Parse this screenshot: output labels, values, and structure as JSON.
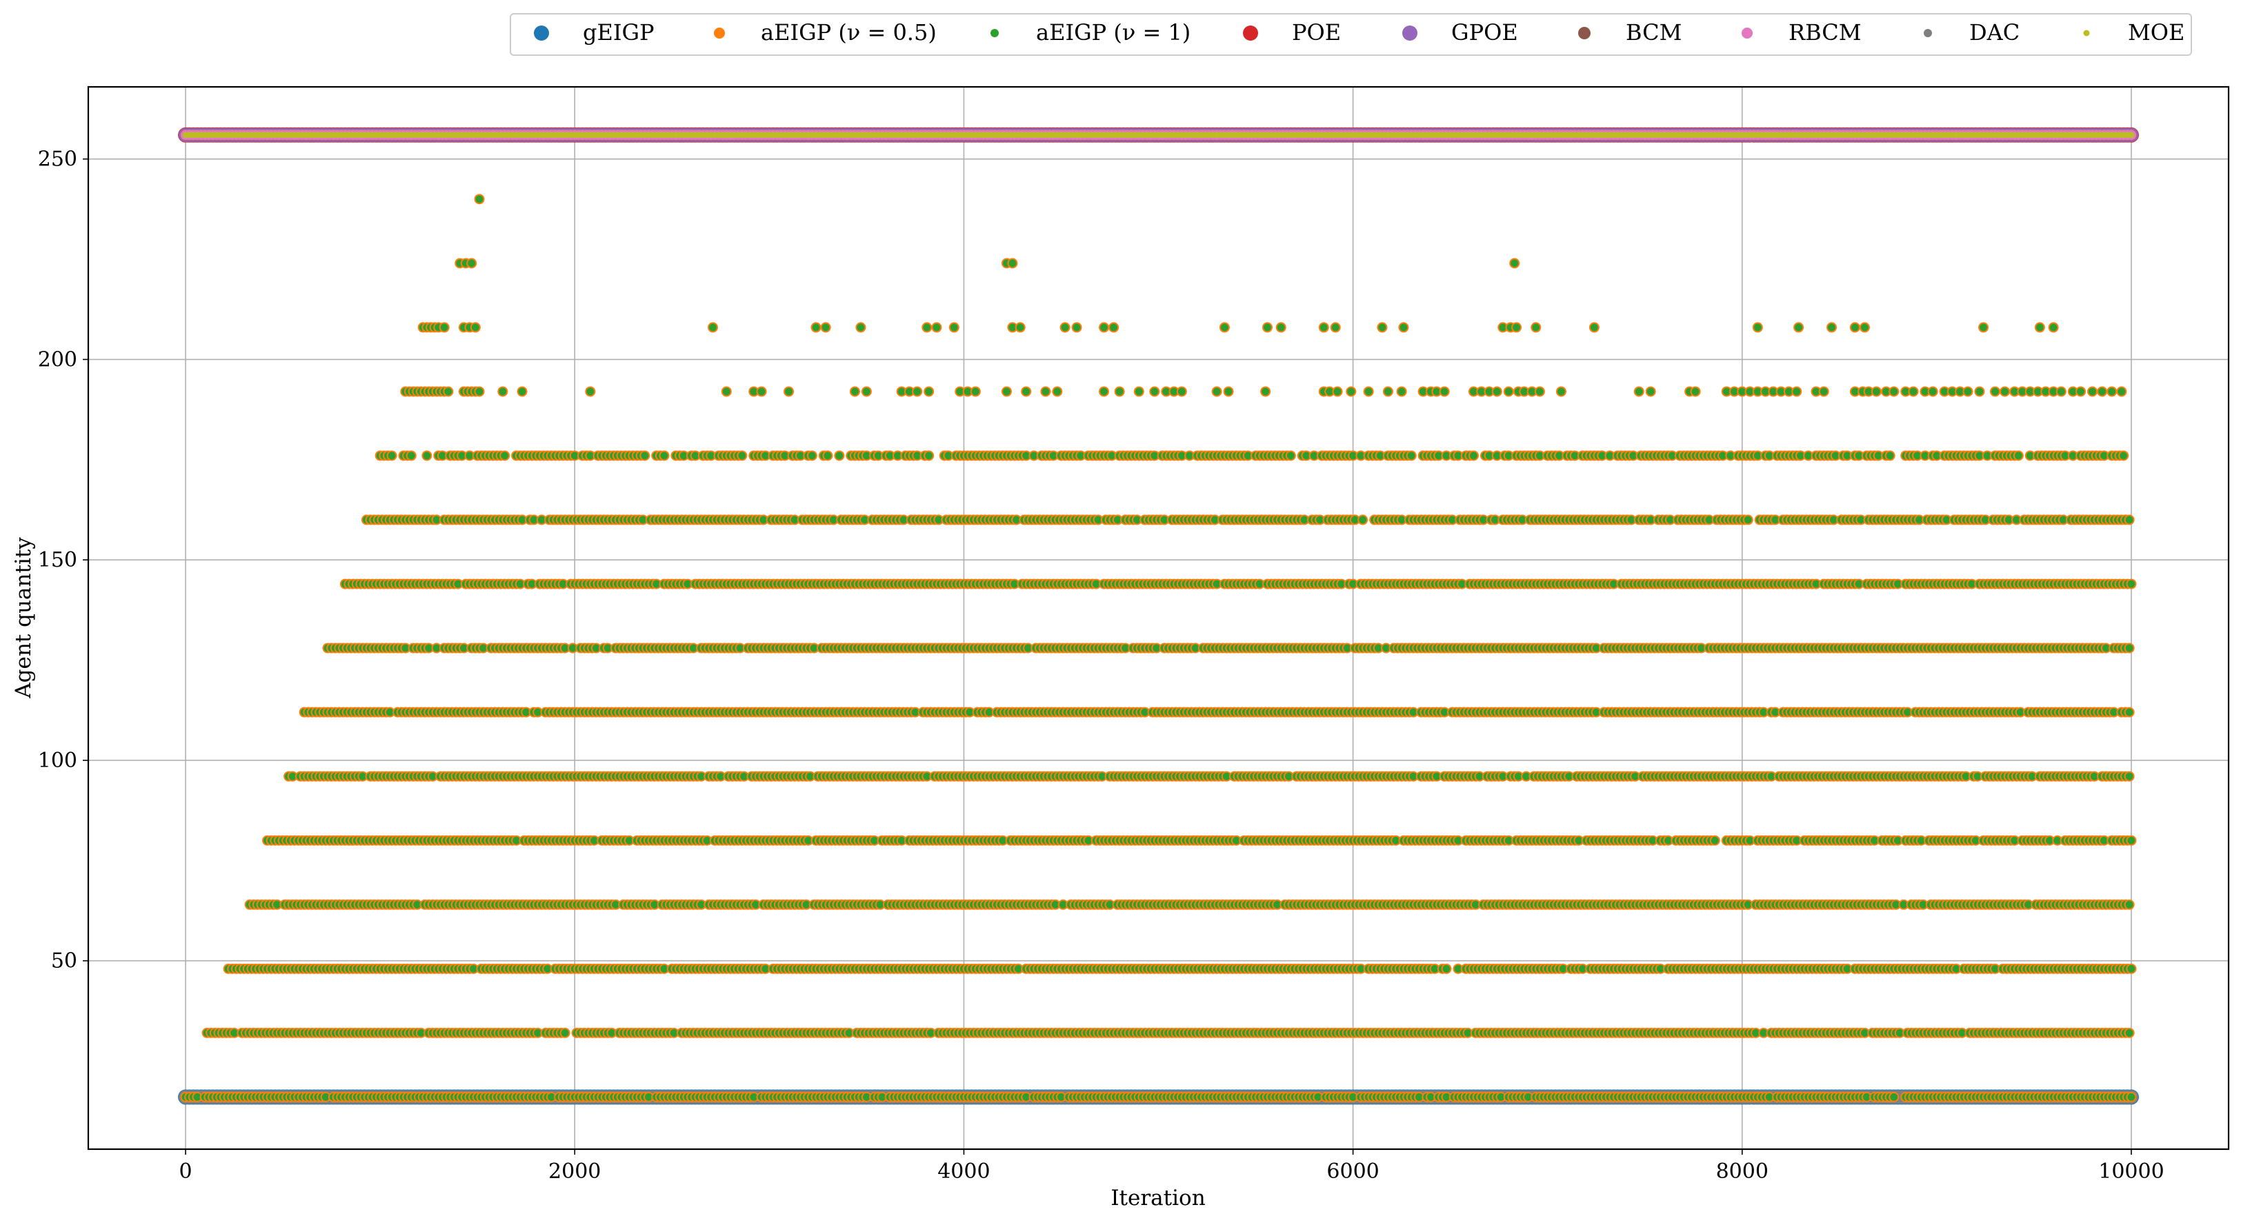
{
  "chart_data": {
    "type": "scatter",
    "title": "",
    "xlabel": "Iteration",
    "ylabel": "Agent quantity",
    "xlim": [
      -500,
      10500
    ],
    "ylim": [
      3,
      268
    ],
    "xticks": [
      0,
      2000,
      4000,
      6000,
      8000,
      10000
    ],
    "yticks": [
      50,
      100,
      150,
      200,
      250
    ],
    "grid": true,
    "legend_placement": "top-right, outside plot",
    "series": [
      {
        "name": "gEIGP",
        "color": "#1f77b4",
        "marker_size": "large",
        "y_value": 16,
        "x_range": [
          0,
          10000
        ]
      },
      {
        "name": "aEIGP ($\\nu = 0.5$)",
        "label_text": "aEIGP (ν = 0.5)",
        "color": "#ff7f0e",
        "marker_size": "medium",
        "y_levels": [
          16,
          32,
          48,
          64,
          80,
          96,
          112,
          128,
          144,
          160,
          176,
          192,
          208,
          224,
          240
        ]
      },
      {
        "name": "aEIGP ($\\nu = 1$)",
        "label_text": "aEIGP (ν = 1)",
        "color": "#2ca02c",
        "marker_size": "small",
        "y_levels": [
          16,
          32,
          48,
          64,
          80,
          96,
          112,
          128,
          144,
          160,
          176,
          192,
          208,
          224,
          240
        ]
      },
      {
        "name": "POE",
        "color": "#d62728",
        "marker_size": "large",
        "y_value": 256,
        "x_range": [
          0,
          10000
        ]
      },
      {
        "name": "GPOE",
        "color": "#9467bd",
        "marker_size": "large",
        "y_value": 256,
        "x_range": [
          0,
          10000
        ]
      },
      {
        "name": "BCM",
        "color": "#8c564b",
        "marker_size": "medium",
        "y_value": 256,
        "x_range": [
          0,
          10000
        ]
      },
      {
        "name": "RBCM",
        "color": "#e377c2",
        "marker_size": "medium",
        "y_value": 256,
        "x_range": [
          0,
          10000
        ]
      },
      {
        "name": "DAC",
        "color": "#7f7f7f",
        "marker_size": "small",
        "y_value": 16,
        "x_range": [
          0,
          10000
        ]
      },
      {
        "name": "MOE",
        "color": "#bcbd22",
        "marker_size": "small",
        "y_value": 256,
        "x_range": [
          0,
          10000
        ]
      }
    ],
    "adaptive_level_first_iteration": [
      {
        "y": 16,
        "x_start": 0
      },
      {
        "y": 32,
        "x_start": 110
      },
      {
        "y": 48,
        "x_start": 220
      },
      {
        "y": 64,
        "x_start": 330
      },
      {
        "y": 80,
        "x_start": 420
      },
      {
        "y": 96,
        "x_start": 530
      },
      {
        "y": 112,
        "x_start": 610
      },
      {
        "y": 128,
        "x_start": 730
      },
      {
        "y": 144,
        "x_start": 820
      },
      {
        "y": 160,
        "x_start": 930
      },
      {
        "y": 176,
        "x_start": 1000
      },
      {
        "y": 192,
        "x_start": 1120
      },
      {
        "y": 208,
        "x_start": 1220
      },
      {
        "y": 224,
        "x_start": 1410
      },
      {
        "y": 240,
        "x_start": 1510
      }
    ],
    "sparse_level_points": {
      "192": [
        1130,
        1150,
        1170,
        1190,
        1210,
        1230,
        1250,
        1270,
        1290,
        1310,
        1330,
        1350,
        1430,
        1450,
        1470,
        1490,
        1510,
        1630,
        1730,
        2080,
        2780,
        2920,
        2960,
        3100,
        3440,
        3500,
        3680,
        3720,
        3760,
        3820,
        3980,
        4020,
        4060,
        4220,
        4320,
        4420,
        4480,
        4720,
        4800,
        4900,
        4980,
        5040,
        5080,
        5120,
        5300,
        5360,
        5550,
        5850,
        5880,
        5920,
        5990,
        6080,
        6180,
        6250,
        6360,
        6400,
        6430,
        6470,
        6620,
        6660,
        6700,
        6740,
        6800,
        6850,
        6880,
        6920,
        6960,
        7070,
        7470,
        7530,
        7730,
        7760,
        7920,
        7960,
        8000,
        8040,
        8080,
        8120,
        8160,
        8200,
        8240,
        8280,
        8380,
        8420,
        8580,
        8620,
        8650,
        8690,
        8740,
        8780,
        8840,
        8880,
        8940,
        8980,
        9040,
        9080,
        9120,
        9160,
        9220,
        9300,
        9350,
        9400,
        9440,
        9480,
        9520,
        9560,
        9600,
        9640,
        9700,
        9740,
        9800,
        9850,
        9900,
        9950
      ],
      "208": [
        1220,
        1240,
        1260,
        1280,
        1300,
        1330,
        1430,
        1460,
        1490,
        2710,
        3240,
        3290,
        3470,
        3810,
        3860,
        3950,
        4250,
        4290,
        4520,
        4580,
        4720,
        4770,
        5340,
        5560,
        5630,
        5850,
        5910,
        6150,
        6260,
        6770,
        6810,
        6840,
        6940,
        7240,
        8080,
        8290,
        8460,
        8580,
        8630,
        9240,
        9530,
        9600
      ],
      "224": [
        1410,
        1440,
        1470,
        4220,
        4250,
        6830
      ],
      "240": [
        1510
      ]
    }
  }
}
